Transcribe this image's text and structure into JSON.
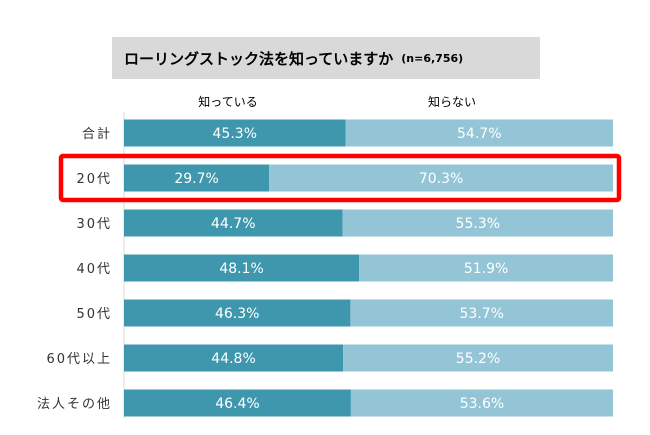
{
  "title": {
    "text": "ローリングストック法を知っていますか",
    "n": "(n=6,756)"
  },
  "highlight": {
    "category": "20代",
    "color": "#ff0000"
  },
  "colors": {
    "known": "#3e97ad",
    "unknown": "#93c5d6",
    "title_bg": "#d9d9d9"
  },
  "chart_data": {
    "type": "bar",
    "orientation": "horizontal",
    "stacked": true,
    "percent": true,
    "title": "ローリングストック法を知っていますか",
    "categories": [
      "合計",
      "20代",
      "30代",
      "40代",
      "50代",
      "60代以上",
      "法人その他"
    ],
    "series": [
      {
        "name": "知っている",
        "values": [
          45.3,
          29.7,
          44.7,
          48.1,
          46.3,
          44.8,
          46.4
        ],
        "labels": [
          "45.3%",
          "29.7%",
          "44.7%",
          "48.1%",
          "46.3%",
          "44.8%",
          "46.4%"
        ]
      },
      {
        "name": "知らない",
        "values": [
          54.7,
          70.3,
          55.3,
          51.9,
          53.7,
          55.2,
          53.6
        ],
        "labels": [
          "54.7%",
          "70.3%",
          "55.3%",
          "51.9%",
          "53.7%",
          "55.2%",
          "53.6%"
        ]
      }
    ],
    "xlim": [
      0,
      100
    ],
    "legend": "top"
  }
}
